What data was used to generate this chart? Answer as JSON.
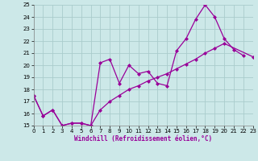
{
  "xlabel": "Windchill (Refroidissement éolien,°C)",
  "background_color": "#cce8e8",
  "grid_color": "#aacccc",
  "line_color": "#990099",
  "xlim": [
    0,
    23
  ],
  "ylim": [
    15,
    25
  ],
  "xticks": [
    0,
    1,
    2,
    3,
    4,
    5,
    6,
    7,
    8,
    9,
    10,
    11,
    12,
    13,
    14,
    15,
    16,
    17,
    18,
    19,
    20,
    21,
    22,
    23
  ],
  "yticks": [
    15,
    16,
    17,
    18,
    19,
    20,
    21,
    22,
    23,
    24,
    25
  ],
  "x_jagged": [
    0,
    1,
    2,
    3,
    4,
    5,
    6,
    7,
    8,
    9,
    10,
    11,
    12,
    13,
    14,
    15,
    16,
    17,
    18,
    19,
    20,
    21,
    22
  ],
  "y_jagged": [
    17.5,
    15.8,
    16.3,
    15.0,
    15.2,
    15.2,
    15.0,
    20.2,
    20.5,
    18.5,
    20.0,
    19.3,
    19.5,
    18.5,
    18.3,
    21.2,
    22.2,
    23.8,
    25.0,
    24.0,
    22.2,
    21.3,
    20.8
  ],
  "x_trend": [
    0,
    1,
    2,
    3,
    4,
    5,
    6,
    7,
    8,
    9,
    10,
    11,
    12,
    13,
    14,
    15,
    16,
    17,
    18,
    19,
    20,
    23
  ],
  "y_trend": [
    17.5,
    15.8,
    16.3,
    15.0,
    15.2,
    15.2,
    15.0,
    16.3,
    17.0,
    17.5,
    18.0,
    18.3,
    18.7,
    19.0,
    19.3,
    19.7,
    20.1,
    20.5,
    21.0,
    21.4,
    21.8,
    20.7
  ]
}
